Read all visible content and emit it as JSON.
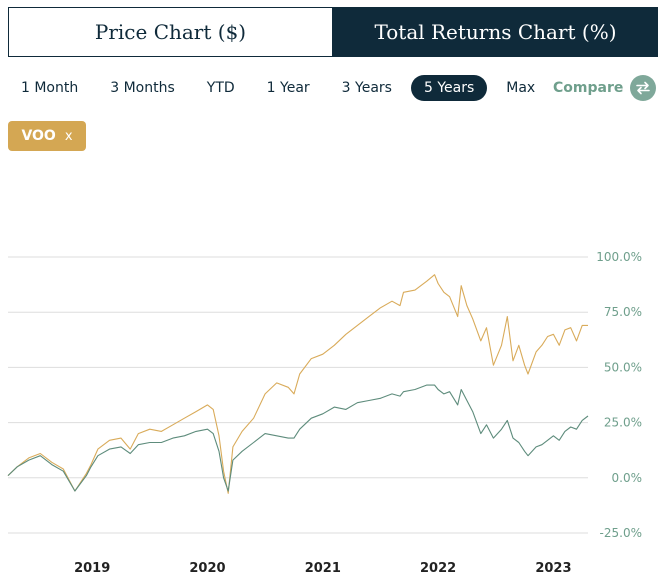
{
  "tabs": {
    "price_label": "Price Chart ($)",
    "returns_label": "Total Returns Chart (%)"
  },
  "ranges": [
    "1 Month",
    "3 Months",
    "YTD",
    "1 Year",
    "3 Years",
    "5 Years",
    "Max"
  ],
  "active_range": "5 Years",
  "compare": {
    "label": "Compare",
    "icon": "swap-arrows-icon"
  },
  "ticker": {
    "label": "VOO",
    "remove": "x"
  },
  "colors": {
    "navy": "#0f2a3a",
    "gold": "#d4a753",
    "green": "#6f9f8c",
    "series_gold": "#d9ab5a",
    "series_green": "#5e8c7c",
    "grid": "#dddddd"
  },
  "chart_data": {
    "type": "line",
    "x_ticks": [
      "2019",
      "2020",
      "2021",
      "2022",
      "2023"
    ],
    "x_tick_positions": [
      2019.0,
      2020.0,
      2021.0,
      2022.0,
      2023.0
    ],
    "xlim": [
      2018.27,
      2023.3
    ],
    "y_ticks": [
      "100.0%",
      "75.0%",
      "50.0%",
      "25.0%",
      "0.0%",
      "-25.0%"
    ],
    "y_tick_values": [
      100,
      75,
      50,
      25,
      0,
      -25
    ],
    "ylim": [
      -25,
      100
    ],
    "grid": true,
    "y_axis_side": "right",
    "series": [
      {
        "color": "gold",
        "x": [
          2018.27,
          2018.35,
          2018.45,
          2018.55,
          2018.65,
          2018.75,
          2018.85,
          2018.95,
          2018.99,
          2019.05,
          2019.15,
          2019.25,
          2019.33,
          2019.4,
          2019.5,
          2019.6,
          2019.7,
          2019.8,
          2019.9,
          2020.0,
          2020.05,
          2020.1,
          2020.14,
          2020.18,
          2020.22,
          2020.3,
          2020.4,
          2020.5,
          2020.6,
          2020.7,
          2020.75,
          2020.8,
          2020.9,
          2021.0,
          2021.1,
          2021.2,
          2021.3,
          2021.4,
          2021.5,
          2021.6,
          2021.67,
          2021.7,
          2021.8,
          2021.9,
          2021.97,
          2022.0,
          2022.05,
          2022.1,
          2022.17,
          2022.2,
          2022.25,
          2022.3,
          2022.37,
          2022.42,
          2022.48,
          2022.55,
          2022.6,
          2022.65,
          2022.7,
          2022.75,
          2022.78,
          2022.85,
          2022.9,
          2022.95,
          2023.0,
          2023.05,
          2023.1,
          2023.15,
          2023.2,
          2023.25,
          2023.3
        ],
        "y": [
          1,
          5,
          9,
          11,
          7,
          4,
          -6,
          2,
          6,
          13,
          17,
          18,
          13,
          20,
          22,
          21,
          24,
          27,
          30,
          33,
          31,
          19,
          3,
          -7,
          14,
          21,
          27,
          38,
          43,
          41,
          38,
          47,
          54,
          56,
          60,
          65,
          69,
          73,
          77,
          80,
          78,
          84,
          85,
          89,
          92,
          88,
          84,
          82,
          73,
          87,
          78,
          72,
          62,
          68,
          51,
          60,
          73,
          53,
          60,
          51,
          47,
          57,
          60,
          64,
          65,
          60,
          67,
          68,
          62,
          69,
          69
        ]
      },
      {
        "color": "green",
        "x": [
          2018.27,
          2018.35,
          2018.45,
          2018.55,
          2018.65,
          2018.75,
          2018.85,
          2018.95,
          2018.99,
          2019.05,
          2019.15,
          2019.25,
          2019.33,
          2019.4,
          2019.5,
          2019.6,
          2019.7,
          2019.8,
          2019.9,
          2020.0,
          2020.05,
          2020.1,
          2020.14,
          2020.18,
          2020.22,
          2020.3,
          2020.4,
          2020.5,
          2020.6,
          2020.7,
          2020.75,
          2020.8,
          2020.9,
          2021.0,
          2021.1,
          2021.2,
          2021.3,
          2021.4,
          2021.5,
          2021.6,
          2021.67,
          2021.7,
          2021.8,
          2021.9,
          2021.97,
          2022.0,
          2022.05,
          2022.1,
          2022.17,
          2022.2,
          2022.25,
          2022.3,
          2022.37,
          2022.42,
          2022.48,
          2022.55,
          2022.6,
          2022.65,
          2022.7,
          2022.75,
          2022.78,
          2022.85,
          2022.9,
          2022.95,
          2023.0,
          2023.05,
          2023.1,
          2023.15,
          2023.2,
          2023.25,
          2023.3
        ],
        "y": [
          1,
          5,
          8,
          10,
          6,
          3,
          -6,
          1,
          5,
          10,
          13,
          14,
          11,
          15,
          16,
          16,
          18,
          19,
          21,
          22,
          20,
          12,
          0,
          -6,
          8,
          12,
          16,
          20,
          19,
          18,
          18,
          22,
          27,
          29,
          32,
          31,
          34,
          35,
          36,
          38,
          37,
          39,
          40,
          42,
          42,
          40,
          38,
          39,
          33,
          40,
          35,
          30,
          20,
          24,
          18,
          22,
          26,
          18,
          16,
          12,
          10,
          14,
          15,
          17,
          19,
          17,
          21,
          23,
          22,
          26,
          28
        ]
      }
    ]
  }
}
